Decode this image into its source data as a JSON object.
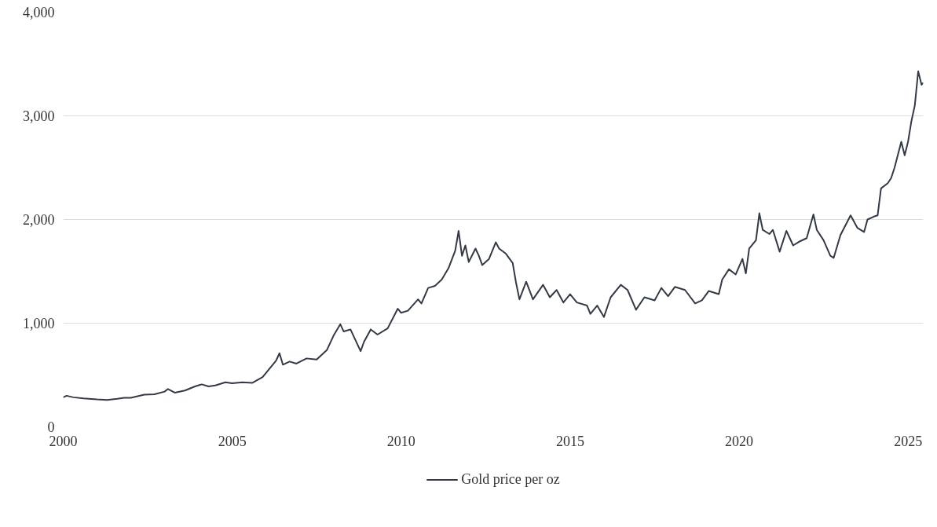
{
  "chart_data": {
    "type": "line",
    "x": [
      2000.0,
      2000.1,
      2000.3,
      2000.6,
      2001.0,
      2001.3,
      2001.6,
      2001.8,
      2002.0,
      2002.4,
      2002.7,
      2003.0,
      2003.1,
      2003.3,
      2003.6,
      2003.9,
      2004.1,
      2004.3,
      2004.5,
      2004.8,
      2005.0,
      2005.3,
      2005.6,
      2005.9,
      2006.1,
      2006.3,
      2006.4,
      2006.5,
      2006.7,
      2006.9,
      2007.2,
      2007.5,
      2007.8,
      2008.0,
      2008.2,
      2008.3,
      2008.5,
      2008.8,
      2008.9,
      2009.1,
      2009.3,
      2009.6,
      2009.9,
      2010.0,
      2010.2,
      2010.5,
      2010.6,
      2010.8,
      2011.0,
      2011.2,
      2011.4,
      2011.6,
      2011.7,
      2011.8,
      2011.9,
      2012.0,
      2012.2,
      2012.3,
      2012.4,
      2012.6,
      2012.8,
      2012.9,
      2013.1,
      2013.3,
      2013.4,
      2013.5,
      2013.7,
      2013.9,
      2014.2,
      2014.4,
      2014.6,
      2014.8,
      2015.0,
      2015.2,
      2015.5,
      2015.6,
      2015.8,
      2016.0,
      2016.2,
      2016.5,
      2016.7,
      2016.95,
      2017.2,
      2017.5,
      2017.7,
      2017.9,
      2018.1,
      2018.4,
      2018.7,
      2018.9,
      2019.1,
      2019.4,
      2019.5,
      2019.7,
      2019.9,
      2020.1,
      2020.2,
      2020.3,
      2020.5,
      2020.6,
      2020.7,
      2020.9,
      2021.0,
      2021.2,
      2021.4,
      2021.6,
      2021.8,
      2022.0,
      2022.2,
      2022.3,
      2022.5,
      2022.7,
      2022.8,
      2023.0,
      2023.3,
      2023.5,
      2023.7,
      2023.8,
      2024.0,
      2024.1,
      2024.2,
      2024.4,
      2024.5,
      2024.6,
      2024.8,
      2024.9,
      2025.0,
      2025.1,
      2025.2,
      2025.3,
      2025.4,
      2025.45
    ],
    "series": [
      {
        "name": "Gold price per oz",
        "color": "#333a45",
        "values": [
          285,
          300,
          285,
          275,
          265,
          260,
          270,
          280,
          280,
          310,
          315,
          340,
          365,
          330,
          350,
          390,
          410,
          390,
          400,
          430,
          420,
          430,
          425,
          480,
          560,
          640,
          710,
          600,
          630,
          610,
          660,
          650,
          740,
          880,
          990,
          920,
          940,
          730,
          820,
          940,
          890,
          950,
          1140,
          1100,
          1120,
          1230,
          1190,
          1340,
          1360,
          1420,
          1530,
          1700,
          1890,
          1650,
          1750,
          1590,
          1720,
          1650,
          1560,
          1620,
          1780,
          1720,
          1670,
          1580,
          1390,
          1230,
          1400,
          1230,
          1370,
          1250,
          1320,
          1200,
          1280,
          1200,
          1170,
          1090,
          1170,
          1060,
          1250,
          1370,
          1320,
          1130,
          1250,
          1220,
          1340,
          1260,
          1350,
          1320,
          1190,
          1220,
          1310,
          1280,
          1420,
          1520,
          1470,
          1620,
          1480,
          1720,
          1800,
          2060,
          1900,
          1860,
          1900,
          1690,
          1890,
          1750,
          1790,
          1820,
          2050,
          1900,
          1800,
          1650,
          1630,
          1850,
          2040,
          1920,
          1880,
          2000,
          2030,
          2040,
          2300,
          2350,
          2400,
          2500,
          2750,
          2620,
          2750,
          2950,
          3100,
          3430,
          3300,
          3320
        ]
      }
    ],
    "xlim": [
      2000,
      2025.45
    ],
    "xticks": [
      2000,
      2005,
      2010,
      2015,
      2020,
      2025
    ],
    "ylim": [
      0,
      4000
    ],
    "yticks": [
      {
        "value": 0,
        "label": "0"
      },
      {
        "value": 1000,
        "label": "1,000"
      },
      {
        "value": 2000,
        "label": "2,000"
      },
      {
        "value": 3000,
        "label": "3,000"
      },
      {
        "value": 4000,
        "label": "4,000"
      }
    ],
    "grid": "y",
    "legend": "bottom",
    "marker": "none",
    "line_style": "solid"
  }
}
